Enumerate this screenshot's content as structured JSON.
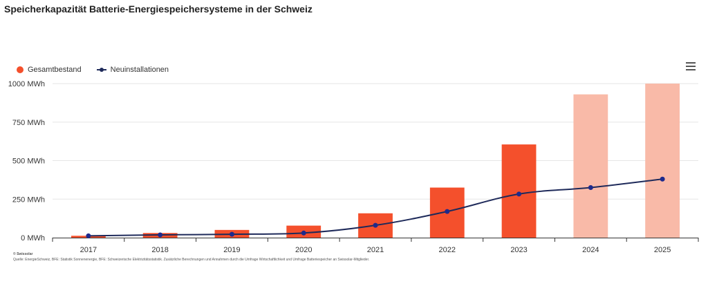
{
  "title": "Speicherkapazität Batterie-Energiespeichersysteme in der Schweiz",
  "menu": {
    "icon": "hamburger-menu-icon"
  },
  "legend": {
    "placement": "top-left",
    "items": [
      {
        "label": "Gesamtbestand",
        "color": "#F4502C",
        "icon": "circle-marker-icon"
      },
      {
        "label": "Neuinstallationen",
        "color": "#1E2A5A",
        "icon": "line-marker-icon"
      }
    ]
  },
  "credits": {
    "copyright": "© Swissolar",
    "source": "Quelle: EnergieSchweiz, BFE: Statistik Sonnenenergie, BFE: Schweizerische Elektrizitätsstatistik. Zusätzliche Berechnungen und Annahmen durch die Umfrage Wirtschaftlichkeit und Umfrage Batteriespeicher an Swissolar-Mitglieder."
  },
  "chart_data": {
    "type": "bar",
    "title": "Speicherkapazität Batterie-Energiespeichersysteme in der Schweiz",
    "categories": [
      "2017",
      "2018",
      "2019",
      "2020",
      "2021",
      "2022",
      "2023",
      "2024",
      "2025"
    ],
    "ylim": [
      0,
      1000
    ],
    "yticks": [
      {
        "value": 0,
        "label": "0 MWh"
      },
      {
        "value": 250,
        "label": "250 MWh"
      },
      {
        "value": 500,
        "label": "500 MWh"
      },
      {
        "value": 750,
        "label": "750 MWh"
      },
      {
        "value": 1000,
        "label": "1000 MWh"
      }
    ],
    "grid": true,
    "series": [
      {
        "name": "Gesamtbestand",
        "type": "bar",
        "color": "#F4502C",
        "forecast_color": "#F9BAA8",
        "forecast": [
          false,
          false,
          false,
          false,
          false,
          false,
          false,
          true,
          true
        ],
        "values": [
          12,
          30,
          50,
          78,
          158,
          325,
          605,
          930,
          1000
        ]
      },
      {
        "name": "Neuinstallationen",
        "type": "line",
        "color": "#1E2A5A",
        "marker_color": "#1E2A8C",
        "values": [
          12,
          18,
          22,
          30,
          80,
          170,
          283,
          325,
          380
        ]
      }
    ]
  }
}
